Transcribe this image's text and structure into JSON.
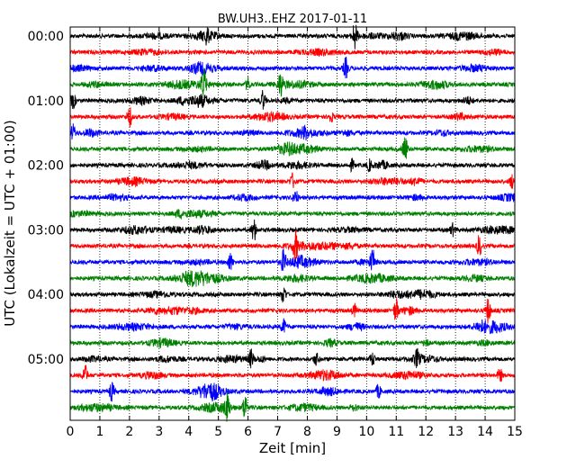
{
  "chart_data": {
    "type": "line",
    "title": "BW.UH3..EHZ 2017-01-11",
    "xlabel": "Zeit  [min]",
    "ylabel": "UTC (Lokalzeit = UTC + 01:00)",
    "xlim": [
      0,
      15
    ],
    "x_ticks": [
      "0",
      "1",
      "2",
      "3",
      "4",
      "5",
      "6",
      "7",
      "8",
      "9",
      "10",
      "11",
      "12",
      "13",
      "14",
      "15"
    ],
    "y_tick_labels": [
      "00:00",
      "01:00",
      "02:00",
      "03:00",
      "04:00",
      "05:00"
    ],
    "grid": "vertical dotted",
    "trace_interval_min": 15,
    "trace_colors": [
      "#000000",
      "#ff0000",
      "#0000ff",
      "#008000"
    ],
    "events": [
      {
        "trace": 0,
        "t": 9.6,
        "amp": 0.95
      },
      {
        "trace": 0,
        "t": 4.6,
        "amp": 0.4
      },
      {
        "trace": 2,
        "t": 9.3,
        "amp": 0.7
      },
      {
        "trace": 3,
        "t": 4.5,
        "amp": 0.9
      },
      {
        "trace": 3,
        "t": 7.1,
        "amp": 0.8
      },
      {
        "trace": 3,
        "t": 6.0,
        "amp": 0.45
      },
      {
        "trace": 4,
        "t": 6.5,
        "amp": 0.65
      },
      {
        "trace": 4,
        "t": 0.1,
        "amp": 0.5
      },
      {
        "trace": 5,
        "t": 2.0,
        "amp": 0.7
      },
      {
        "trace": 5,
        "t": 8.8,
        "amp": 0.35
      },
      {
        "trace": 6,
        "t": 0.1,
        "amp": 0.55
      },
      {
        "trace": 7,
        "t": 11.3,
        "amp": 0.9
      },
      {
        "trace": 8,
        "t": 9.5,
        "amp": 0.35
      },
      {
        "trace": 8,
        "t": 10.1,
        "amp": 0.35
      },
      {
        "trace": 9,
        "t": 7.5,
        "amp": 0.5
      },
      {
        "trace": 9,
        "t": 14.9,
        "amp": 0.45
      },
      {
        "trace": 10,
        "t": 7.6,
        "amp": 0.55
      },
      {
        "trace": 12,
        "t": 6.2,
        "amp": 0.75
      },
      {
        "trace": 12,
        "t": 12.9,
        "amp": 0.4
      },
      {
        "trace": 13,
        "t": 7.6,
        "amp": 0.9
      },
      {
        "trace": 13,
        "t": 13.8,
        "amp": 0.7
      },
      {
        "trace": 14,
        "t": 5.4,
        "amp": 0.6
      },
      {
        "trace": 14,
        "t": 7.2,
        "amp": 0.8
      },
      {
        "trace": 14,
        "t": 10.2,
        "amp": 0.8
      },
      {
        "trace": 16,
        "t": 7.2,
        "amp": 0.6
      },
      {
        "trace": 17,
        "t": 11.0,
        "amp": 0.8
      },
      {
        "trace": 17,
        "t": 14.1,
        "amp": 0.85
      },
      {
        "trace": 17,
        "t": 9.6,
        "amp": 0.4
      },
      {
        "trace": 18,
        "t": 7.2,
        "amp": 0.5
      },
      {
        "trace": 19,
        "t": 12.0,
        "amp": 0.35
      },
      {
        "trace": 20,
        "t": 6.1,
        "amp": 0.6
      },
      {
        "trace": 20,
        "t": 8.3,
        "amp": 0.4
      },
      {
        "trace": 20,
        "t": 10.2,
        "amp": 0.45
      },
      {
        "trace": 20,
        "t": 11.7,
        "amp": 0.5
      },
      {
        "trace": 21,
        "t": 0.5,
        "amp": 0.7
      },
      {
        "trace": 21,
        "t": 14.5,
        "amp": 0.45
      },
      {
        "trace": 22,
        "t": 1.4,
        "amp": 0.6
      },
      {
        "trace": 22,
        "t": 10.4,
        "amp": 0.45
      },
      {
        "trace": 23,
        "t": 5.3,
        "amp": 0.85
      },
      {
        "trace": 23,
        "t": 5.9,
        "amp": 0.9
      }
    ]
  }
}
